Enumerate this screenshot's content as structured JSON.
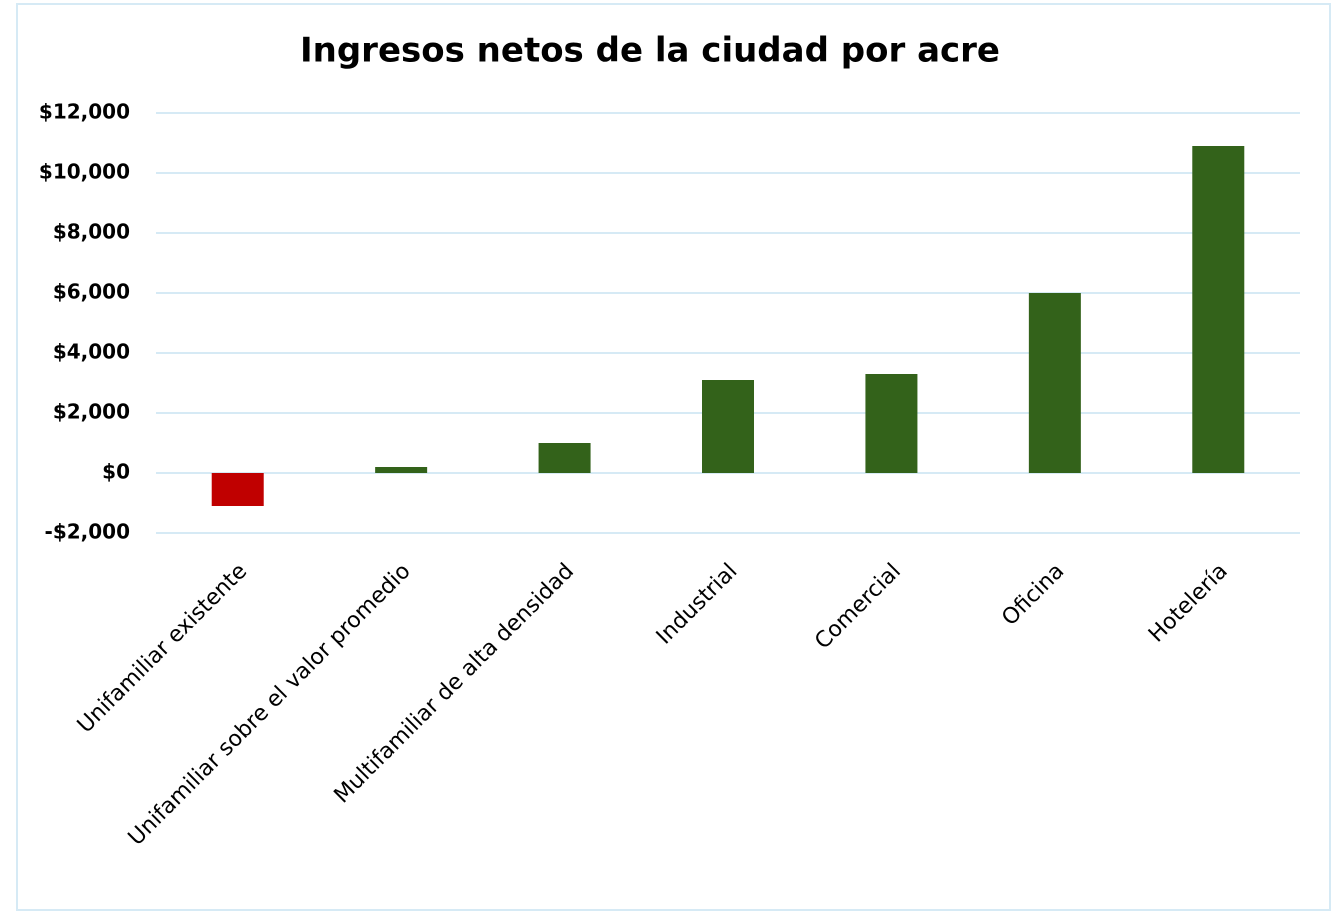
{
  "chart_data": {
    "type": "bar",
    "title": "Ingresos netos de la ciudad por acre",
    "categories": [
      "Unifamiliar existente",
      "Unifamiliar sobre el valor promedio",
      "Multifamiliar de alta densidad",
      "Industrial",
      "Comercial",
      "Oficina",
      "Hotelería"
    ],
    "values": [
      -1100,
      200,
      1000,
      3100,
      3300,
      6000,
      10900
    ],
    "colors": [
      "#c00000",
      "#33621a",
      "#33621a",
      "#33621a",
      "#33621a",
      "#33621a",
      "#33621a"
    ],
    "ylim": [
      -2000,
      12000
    ],
    "yticks": [
      {
        "value": -2000,
        "label": "-$2,000"
      },
      {
        "value": 0,
        "label": "$0"
      },
      {
        "value": 2000,
        "label": "$2,000"
      },
      {
        "value": 4000,
        "label": "$4,000"
      },
      {
        "value": 6000,
        "label": "$6,000"
      },
      {
        "value": 8000,
        "label": "$8,000"
      },
      {
        "value": 10000,
        "label": "$10,000"
      },
      {
        "value": 12000,
        "label": "$12,000"
      }
    ],
    "grid": true
  }
}
